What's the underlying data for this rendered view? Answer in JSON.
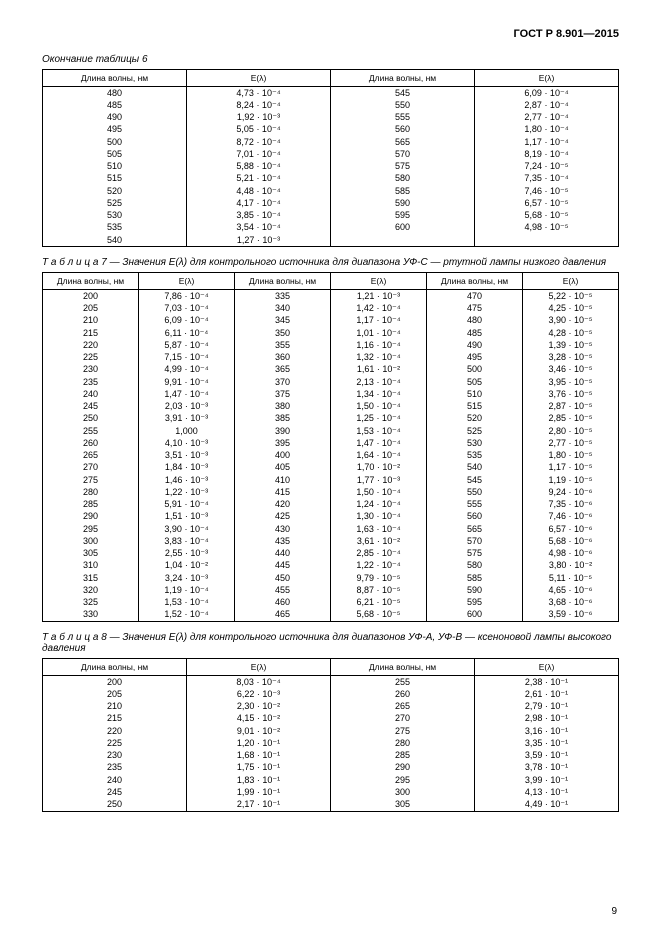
{
  "doc_header": "ГОСТ Р 8.901—2015",
  "page_number": "9",
  "table6": {
    "caption_prefix": "Окончание таблицы 6",
    "headers": [
      "Длина волны, нм",
      "E(λ)",
      "Длина волны, нм",
      "E(λ)"
    ],
    "rows": [
      [
        "480",
        "4,73 · 10⁻⁴",
        "545",
        "6,09 · 10⁻⁴"
      ],
      [
        "485",
        "8,24 · 10⁻⁴",
        "550",
        "2,87 · 10⁻⁴"
      ],
      [
        "490",
        "1,92 · 10⁻³",
        "555",
        "2,77 · 10⁻⁴"
      ],
      [
        "495",
        "5,05 · 10⁻⁴",
        "560",
        "1,80 · 10⁻⁴"
      ],
      [
        "500",
        "8,72 · 10⁻⁴",
        "565",
        "1,17 · 10⁻⁴"
      ],
      [
        "505",
        "7,01 · 10⁻⁴",
        "570",
        "8,19 · 10⁻⁴"
      ],
      [
        "510",
        "5,88 · 10⁻⁴",
        "575",
        "7,24 · 10⁻⁵"
      ],
      [
        "515",
        "5,21 · 10⁻⁴",
        "580",
        "7,35 · 10⁻⁴"
      ],
      [
        "520",
        "4,48 · 10⁻⁴",
        "585",
        "7,46 · 10⁻⁵"
      ],
      [
        "525",
        "4,17 · 10⁻⁴",
        "590",
        "6,57 · 10⁻⁵"
      ],
      [
        "530",
        "3,85 · 10⁻⁴",
        "595",
        "5,68 · 10⁻⁵"
      ],
      [
        "535",
        "3,54 · 10⁻⁴",
        "600",
        "4,98 · 10⁻⁵"
      ],
      [
        "540",
        "1,27 · 10⁻³",
        "",
        ""
      ]
    ]
  },
  "table7": {
    "caption": "Т а б л и ц а  7 — Значения E(λ) для контрольного источника для диапазона УФ-С — ртутной лампы низкого давления",
    "headers": [
      "Длина волны, нм",
      "E(λ)",
      "Длина волны, нм",
      "E(λ)",
      "Длина волны, нм",
      "E(λ)"
    ],
    "rows": [
      [
        "200",
        "7,86 · 10⁻⁴",
        "335",
        "1,21 · 10⁻³",
        "470",
        "5,22 · 10⁻⁵"
      ],
      [
        "205",
        "7,03 · 10⁻⁴",
        "340",
        "1,42 · 10⁻⁴",
        "475",
        "4,25 · 10⁻⁵"
      ],
      [
        "210",
        "6,09 · 10⁻⁴",
        "345",
        "1,17 · 10⁻⁴",
        "480",
        "3,90 · 10⁻⁵"
      ],
      [
        "215",
        "6,11 · 10⁻⁴",
        "350",
        "1,01 · 10⁻⁴",
        "485",
        "4,28 · 10⁻⁵"
      ],
      [
        "220",
        "5,87 · 10⁻⁴",
        "355",
        "1,16 · 10⁻⁴",
        "490",
        "1,39 · 10⁻⁵"
      ],
      [
        "225",
        "7,15 · 10⁻⁴",
        "360",
        "1,32 · 10⁻⁴",
        "495",
        "3,28 · 10⁻⁵"
      ],
      [
        "230",
        "4,99 · 10⁻⁴",
        "365",
        "1,61 · 10⁻²",
        "500",
        "3,46 · 10⁻⁵"
      ],
      [
        "235",
        "9,91 · 10⁻⁴",
        "370",
        "2,13 · 10⁻⁴",
        "505",
        "3,95 · 10⁻⁵"
      ],
      [
        "240",
        "1,47 · 10⁻⁴",
        "375",
        "1,34 · 10⁻⁴",
        "510",
        "3,76 · 10⁻⁵"
      ],
      [
        "245",
        "2,03 · 10⁻³",
        "380",
        "1,50 · 10⁻⁴",
        "515",
        "2,87 · 10⁻⁵"
      ],
      [
        "250",
        "3,91 · 10⁻³",
        "385",
        "1,25 · 10⁻⁴",
        "520",
        "2,85 · 10⁻⁵"
      ],
      [
        "255",
        "1,000",
        "390",
        "1,53 · 10⁻⁴",
        "525",
        "2,80 · 10⁻⁵"
      ],
      [
        "260",
        "4,10 · 10⁻³",
        "395",
        "1,47 · 10⁻⁴",
        "530",
        "2,77 · 10⁻⁵"
      ],
      [
        "265",
        "3,51 · 10⁻³",
        "400",
        "1,64 · 10⁻⁴",
        "535",
        "1,80 · 10⁻⁵"
      ],
      [
        "270",
        "1,84 · 10⁻³",
        "405",
        "1,70 · 10⁻²",
        "540",
        "1,17 · 10⁻⁵"
      ],
      [
        "275",
        "1,46 · 10⁻³",
        "410",
        "1,77 · 10⁻³",
        "545",
        "1,19 · 10⁻⁵"
      ],
      [
        "280",
        "1,22 · 10⁻³",
        "415",
        "1,50 · 10⁻⁴",
        "550",
        "9,24 · 10⁻⁶"
      ],
      [
        "285",
        "5,91 · 10⁻⁴",
        "420",
        "1,24 · 10⁻⁴",
        "555",
        "7,35 · 10⁻⁶"
      ],
      [
        "290",
        "1,51 · 10⁻³",
        "425",
        "1,30 · 10⁻⁴",
        "560",
        "7,46 · 10⁻⁶"
      ],
      [
        "295",
        "3,90 · 10⁻⁴",
        "430",
        "1,63 · 10⁻⁴",
        "565",
        "6,57 · 10⁻⁶"
      ],
      [
        "300",
        "3,83 · 10⁻⁴",
        "435",
        "3,61 · 10⁻²",
        "570",
        "5,68 · 10⁻⁶"
      ],
      [
        "305",
        "2,55 · 10⁻³",
        "440",
        "2,85 · 10⁻⁴",
        "575",
        "4,98 · 10⁻⁶"
      ],
      [
        "310",
        "1,04 · 10⁻²",
        "445",
        "1,22 · 10⁻⁴",
        "580",
        "3,80 · 10⁻²"
      ],
      [
        "315",
        "3,24 · 10⁻³",
        "450",
        "9,79 · 10⁻⁵",
        "585",
        "5,11 · 10⁻⁵"
      ],
      [
        "320",
        "1,19 · 10⁻⁴",
        "455",
        "8,87 · 10⁻⁵",
        "590",
        "4,65 · 10⁻⁶"
      ],
      [
        "325",
        "1,53 · 10⁻⁴",
        "460",
        "6,21 · 10⁻⁵",
        "595",
        "3,68 · 10⁻⁶"
      ],
      [
        "330",
        "1,52 · 10⁻⁴",
        "465",
        "5,68 · 10⁻⁵",
        "600",
        "3,59 · 10⁻⁶"
      ]
    ]
  },
  "table8": {
    "caption": "Т а б л и ц а  8 — Значения E(λ) для контрольного источника для диапазонов УФ-А, УФ-В — ксеноновой лампы высокого давления",
    "headers": [
      "Длина волны, нм",
      "E(λ)",
      "Длина волны, нм",
      "E(λ)"
    ],
    "rows": [
      [
        "200",
        "8,03 · 10⁻⁴",
        "255",
        "2,38 · 10⁻¹"
      ],
      [
        "205",
        "6,22 · 10⁻³",
        "260",
        "2,61 · 10⁻¹"
      ],
      [
        "210",
        "2,30 · 10⁻²",
        "265",
        "2,79 · 10⁻¹"
      ],
      [
        "215",
        "4,15 · 10⁻²",
        "270",
        "2,98 · 10⁻¹"
      ],
      [
        "220",
        "9,01 · 10⁻²",
        "275",
        "3,16 · 10⁻¹"
      ],
      [
        "225",
        "1,20 · 10⁻¹",
        "280",
        "3,35 · 10⁻¹"
      ],
      [
        "230",
        "1,68 · 10⁻¹",
        "285",
        "3,59 · 10⁻¹"
      ],
      [
        "235",
        "1,75 · 10⁻¹",
        "290",
        "3,78 · 10⁻¹"
      ],
      [
        "240",
        "1,83 · 10⁻¹",
        "295",
        "3,99 · 10⁻¹"
      ],
      [
        "245",
        "1,99 · 10⁻¹",
        "300",
        "4,13 · 10⁻¹"
      ],
      [
        "250",
        "2,17 · 10⁻¹",
        "305",
        "4,49 · 10⁻¹"
      ]
    ]
  }
}
